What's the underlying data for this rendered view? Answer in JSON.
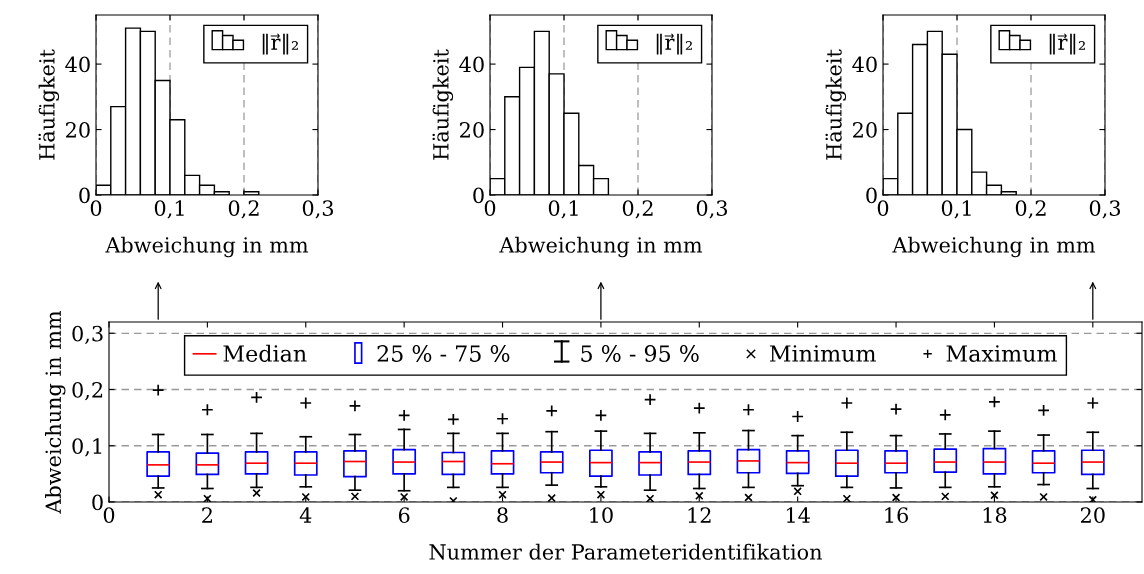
{
  "chart_data": [
    {
      "type": "histogram",
      "xlabel": "Abweichung in mm",
      "ylabel": "Häufigkeit",
      "bins": [
        0,
        0.02,
        0.04,
        0.06,
        0.08,
        0.1,
        0.12,
        0.14,
        0.16,
        0.18,
        0.2,
        0.22
      ],
      "xlim": [
        0,
        0.3
      ],
      "xticks": [
        0,
        {
          "value": 0.1,
          "label": "0,1"
        },
        {
          "value": 0.2,
          "label": "0,2"
        },
        {
          "value": 0.3,
          "label": "0,3"
        }
      ],
      "ylim": [
        0,
        55
      ],
      "yticks": [
        0,
        20,
        40
      ],
      "grid": "x",
      "legend": "top right",
      "series": [
        {
          "name": "‖r⃗‖₂",
          "color": "#ffffff",
          "values": [
            3,
            27,
            51,
            50,
            35,
            23,
            6,
            3,
            1,
            0,
            1
          ]
        }
      ]
    },
    {
      "type": "histogram",
      "xlabel": "Abweichung in mm",
      "ylabel": "Häufigkeit",
      "bins": [
        0,
        0.02,
        0.04,
        0.06,
        0.08,
        0.1,
        0.12,
        0.14,
        0.16
      ],
      "xlim": [
        0,
        0.3
      ],
      "xticks": [
        0,
        {
          "value": 0.1,
          "label": "0,1"
        },
        {
          "value": 0.2,
          "label": "0,2"
        },
        {
          "value": 0.3,
          "label": "0,3"
        }
      ],
      "ylim": [
        0,
        55
      ],
      "yticks": [
        0,
        20,
        40
      ],
      "grid": "x",
      "legend": "top right",
      "series": [
        {
          "name": "‖r⃗‖₂",
          "color": "#ffffff",
          "values": [
            5,
            30,
            39,
            50,
            37,
            25,
            9,
            5
          ]
        }
      ]
    },
    {
      "type": "histogram",
      "xlabel": "Abweichung in mm",
      "ylabel": "Häufigkeit",
      "bins": [
        0,
        0.02,
        0.04,
        0.06,
        0.08,
        0.1,
        0.12,
        0.14,
        0.16,
        0.18
      ],
      "xlim": [
        0,
        0.3
      ],
      "xticks": [
        0,
        {
          "value": 0.1,
          "label": "0,1"
        },
        {
          "value": 0.2,
          "label": "0,2"
        },
        {
          "value": 0.3,
          "label": "0,3"
        }
      ],
      "ylim": [
        0,
        55
      ],
      "yticks": [
        0,
        20,
        40
      ],
      "grid": "x",
      "legend": "top right",
      "series": [
        {
          "name": "‖r⃗‖₂",
          "color": "#ffffff",
          "values": [
            5,
            25,
            46,
            50,
            43,
            20,
            7,
            3,
            1
          ]
        }
      ]
    },
    {
      "type": "box",
      "xlabel": "Nummer der Parameteridentifikation",
      "ylabel": "Abweichung in mm",
      "xlim": [
        0,
        21
      ],
      "xticks": [
        0,
        2,
        4,
        6,
        8,
        10,
        12,
        14,
        16,
        18,
        20
      ],
      "ylim": [
        0,
        0.32
      ],
      "yticks": [
        0,
        {
          "value": 0.1,
          "label": "0,1"
        },
        {
          "value": 0.2,
          "label": "0,2"
        },
        {
          "value": 0.3,
          "label": "0,3"
        }
      ],
      "grid": "y",
      "legend": "top",
      "annotations": [
        "Median",
        "5 % - 95 %"
      ],
      "series": [
        {
          "type": "box",
          "name": "25 % - 75 %",
          "color": "#0000ff",
          "x": [
            1,
            2,
            3,
            4,
            5,
            6,
            7,
            8,
            9,
            10,
            11,
            12,
            13,
            14,
            15,
            16,
            17,
            18,
            19,
            20
          ],
          "boxes": [
            {
              "low": 0.025,
              "q1": 0.046,
              "median": 0.066,
              "q3": 0.089,
              "high": 0.12
            },
            {
              "low": 0.024,
              "q1": 0.049,
              "median": 0.066,
              "q3": 0.087,
              "high": 0.12
            },
            {
              "low": 0.026,
              "q1": 0.05,
              "median": 0.069,
              "q3": 0.089,
              "high": 0.122
            },
            {
              "low": 0.027,
              "q1": 0.048,
              "median": 0.069,
              "q3": 0.089,
              "high": 0.116
            },
            {
              "low": 0.021,
              "q1": 0.045,
              "median": 0.072,
              "q3": 0.091,
              "high": 0.12
            },
            {
              "low": 0.02,
              "q1": 0.05,
              "median": 0.071,
              "q3": 0.093,
              "high": 0.129
            },
            {
              "low": 0.026,
              "q1": 0.049,
              "median": 0.072,
              "q3": 0.088,
              "high": 0.122
            },
            {
              "low": 0.026,
              "q1": 0.05,
              "median": 0.068,
              "q3": 0.091,
              "high": 0.122
            },
            {
              "low": 0.03,
              "q1": 0.052,
              "median": 0.071,
              "q3": 0.089,
              "high": 0.125
            },
            {
              "low": 0.027,
              "q1": 0.046,
              "median": 0.07,
              "q3": 0.092,
              "high": 0.126
            },
            {
              "low": 0.021,
              "q1": 0.048,
              "median": 0.07,
              "q3": 0.089,
              "high": 0.122
            },
            {
              "low": 0.024,
              "q1": 0.049,
              "median": 0.071,
              "q3": 0.091,
              "high": 0.123
            },
            {
              "low": 0.026,
              "q1": 0.052,
              "median": 0.073,
              "q3": 0.093,
              "high": 0.127
            },
            {
              "low": 0.029,
              "q1": 0.051,
              "median": 0.07,
              "q3": 0.091,
              "high": 0.118
            },
            {
              "low": 0.026,
              "q1": 0.046,
              "median": 0.069,
              "q3": 0.092,
              "high": 0.124
            },
            {
              "low": 0.025,
              "q1": 0.052,
              "median": 0.069,
              "q3": 0.091,
              "high": 0.118
            },
            {
              "low": 0.026,
              "q1": 0.053,
              "median": 0.071,
              "q3": 0.094,
              "high": 0.121
            },
            {
              "low": 0.027,
              "q1": 0.05,
              "median": 0.071,
              "q3": 0.095,
              "high": 0.126
            },
            {
              "low": 0.031,
              "q1": 0.052,
              "median": 0.069,
              "q3": 0.091,
              "high": 0.119
            },
            {
              "low": 0.024,
              "q1": 0.049,
              "median": 0.071,
              "q3": 0.092,
              "high": 0.124
            }
          ]
        },
        {
          "type": "scatter",
          "name": "Minimum",
          "color": "#000000",
          "marker": "cross",
          "x": [
            1,
            2,
            3,
            4,
            5,
            6,
            7,
            8,
            9,
            10,
            11,
            12,
            13,
            14,
            15,
            16,
            17,
            18,
            19,
            20
          ],
          "values": [
            0.013,
            0.006,
            0.016,
            0.009,
            0.01,
            0.009,
            0.002,
            0.013,
            0.007,
            0.013,
            0.006,
            0.011,
            0.008,
            0.019,
            0.006,
            0.008,
            0.01,
            0.012,
            0.009,
            0.004
          ]
        },
        {
          "type": "scatter",
          "name": "Maximum",
          "color": "#000000",
          "marker": "plus",
          "x": [
            1,
            2,
            3,
            4,
            5,
            6,
            7,
            8,
            9,
            10,
            11,
            12,
            13,
            14,
            15,
            16,
            17,
            18,
            19,
            20
          ],
          "values": [
            0.199,
            0.164,
            0.186,
            0.176,
            0.171,
            0.154,
            0.147,
            0.148,
            0.162,
            0.154,
            0.182,
            0.167,
            0.164,
            0.152,
            0.176,
            0.165,
            0.155,
            0.178,
            0.163,
            0.176
          ]
        }
      ]
    }
  ]
}
